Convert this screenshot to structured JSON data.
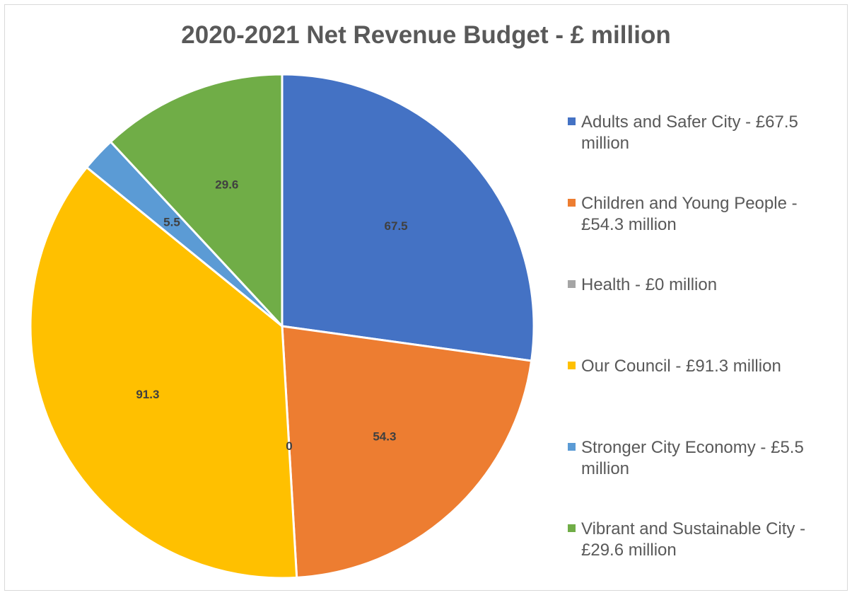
{
  "chart_data": {
    "type": "pie",
    "title": "2020-2021 Net Revenue Budget - £ million",
    "legend_position": "right",
    "slices": [
      {
        "label": "Adults and Safer City - £67.5 million",
        "value": 67.5,
        "data_label": "67.5",
        "color": "#4472C4"
      },
      {
        "label": "Children and Young People - £54.3 million",
        "value": 54.3,
        "data_label": "54.3",
        "color": "#ED7D31"
      },
      {
        "label": "Health - £0 million",
        "value": 0,
        "data_label": "0",
        "color": "#A5A5A5"
      },
      {
        "label": "Our Council - £91.3 million",
        "value": 91.3,
        "data_label": "91.3",
        "color": "#FFC000"
      },
      {
        "label": "Stronger City Economy - £5.5 million",
        "value": 5.5,
        "data_label": "5.5",
        "color": "#5B9BD5"
      },
      {
        "label": "Vibrant and Sustainable City - £29.6 million",
        "value": 29.6,
        "data_label": "29.6",
        "color": "#70AD47"
      }
    ]
  }
}
